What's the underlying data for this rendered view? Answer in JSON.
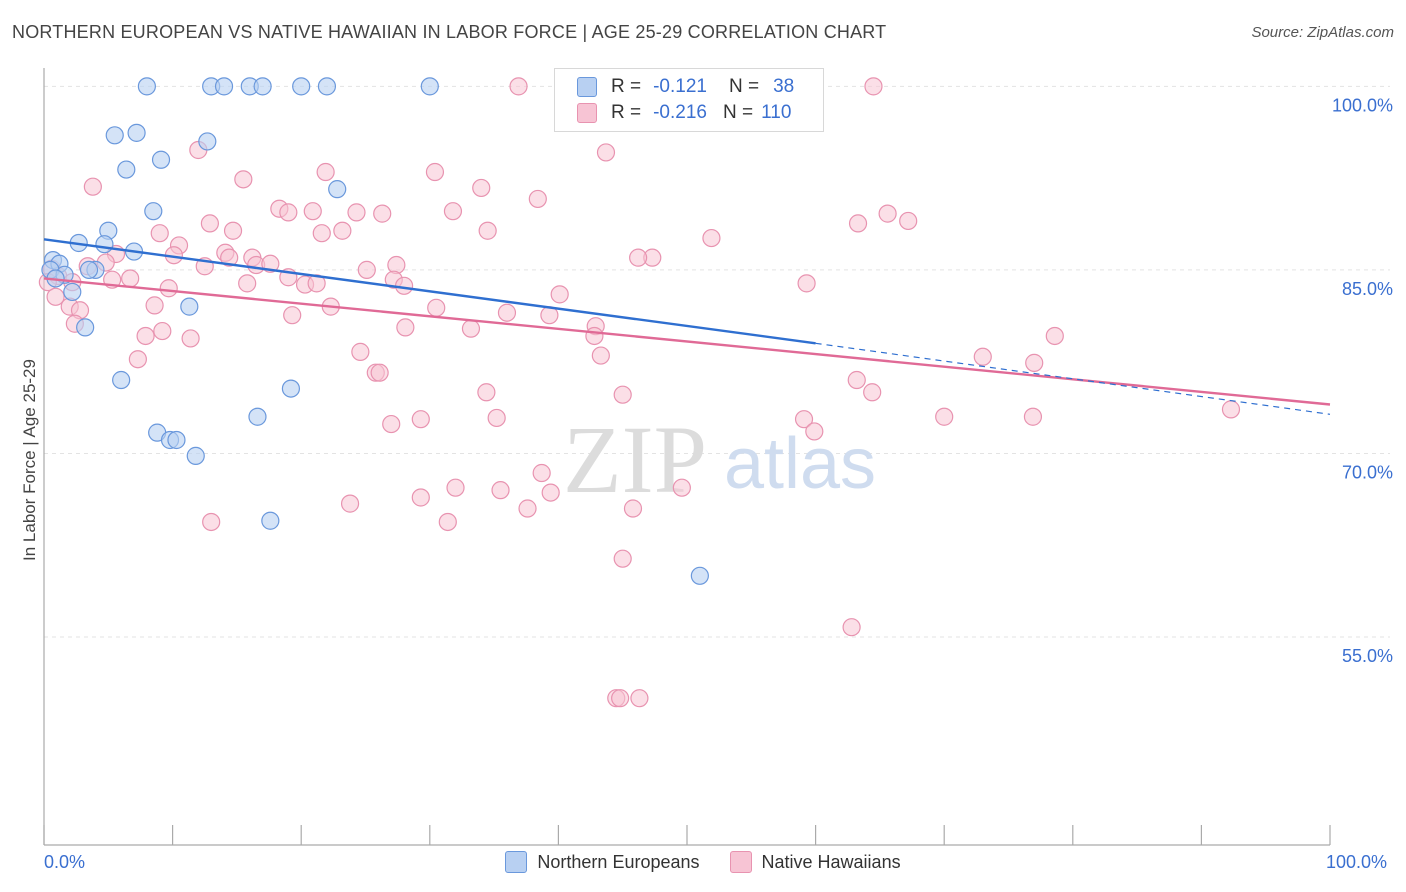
{
  "header": {
    "title": "NORTHERN EUROPEAN VS NATIVE HAWAIIAN IN LABOR FORCE | AGE 25-29 CORRELATION CHART",
    "source": "Source: ZipAtlas.com"
  },
  "watermark": {
    "zip": "ZIP",
    "atlas": "atlas"
  },
  "legend": {
    "rows": [
      {
        "r_label": "R =",
        "r_value": "-0.121",
        "n_label": "N =",
        "n_value": "38"
      },
      {
        "r_label": "R =",
        "r_value": "-0.216",
        "n_label": "N =",
        "n_value": "110"
      }
    ]
  },
  "colors": {
    "blue_fill": "#b8d0f2",
    "blue_stroke": "#6a98dc",
    "blue_line": "#2f6fd0",
    "pink_fill": "#f7c4d4",
    "pink_stroke": "#e893b0",
    "pink_line": "#e06a96",
    "tick_text": "#3a6fd0",
    "grid": "#e3e3e3"
  },
  "chart_data": {
    "type": "scatter",
    "title": "NORTHERN EUROPEAN VS NATIVE HAWAIIAN IN LABOR FORCE | AGE 25-29 CORRELATION CHART",
    "xlabel": "",
    "ylabel": "In Labor Force | Age 25-29",
    "xlim": [
      0,
      100
    ],
    "ylim": [
      38,
      101.5
    ],
    "x_tick_labels": [
      "0.0%",
      "100.0%"
    ],
    "y_ticks": [
      100,
      85,
      70,
      55
    ],
    "y_tick_labels": [
      "100.0%",
      "85.0%",
      "70.0%",
      "55.0%"
    ],
    "grid": true,
    "legend_position": "top-center",
    "series": [
      {
        "name": "Northern Europeans",
        "r": -0.121,
        "n": 38,
        "trend": {
          "x0": 0,
          "y0": 87.5,
          "x1": 60,
          "y1": 79.0,
          "dash_to_x": 100,
          "dash_to_y": 73.2
        },
        "points": [
          [
            8,
            100
          ],
          [
            13,
            100
          ],
          [
            14,
            100
          ],
          [
            16,
            100
          ],
          [
            17,
            100
          ],
          [
            20,
            100
          ],
          [
            22,
            100
          ],
          [
            30,
            100
          ],
          [
            5.5,
            96.0
          ],
          [
            7.2,
            96.2
          ],
          [
            12.7,
            95.5
          ],
          [
            6.4,
            93.2
          ],
          [
            9.1,
            94.0
          ],
          [
            22.8,
            91.6
          ],
          [
            8.5,
            89.8
          ],
          [
            5.0,
            88.2
          ],
          [
            2.7,
            87.2
          ],
          [
            4.7,
            87.1
          ],
          [
            7.0,
            86.5
          ],
          [
            0.7,
            85.8
          ],
          [
            1.2,
            85.5
          ],
          [
            0.5,
            85.0
          ],
          [
            1.6,
            84.6
          ],
          [
            4.0,
            85.0
          ],
          [
            3.5,
            85.0
          ],
          [
            0.9,
            84.3
          ],
          [
            2.2,
            83.2
          ],
          [
            11.3,
            82.0
          ],
          [
            3.2,
            80.3
          ],
          [
            6.0,
            76.0
          ],
          [
            19.2,
            75.3
          ],
          [
            16.6,
            73.0
          ],
          [
            8.8,
            71.7
          ],
          [
            9.8,
            71.1
          ],
          [
            10.3,
            71.1
          ],
          [
            11.8,
            69.8
          ],
          [
            17.6,
            64.5
          ],
          [
            51.0,
            60.0
          ]
        ]
      },
      {
        "name": "Native Hawaiians",
        "r": -0.216,
        "n": 110,
        "trend": {
          "x0": 0,
          "y0": 84.3,
          "x1": 100,
          "y1": 74.0
        },
        "points": [
          [
            36.9,
            100
          ],
          [
            54.1,
            100
          ],
          [
            64.5,
            100
          ],
          [
            53.2,
            97.8
          ],
          [
            12.0,
            94.8
          ],
          [
            43.7,
            94.6
          ],
          [
            3.8,
            91.8
          ],
          [
            15.5,
            92.4
          ],
          [
            21.9,
            93.0
          ],
          [
            30.4,
            93.0
          ],
          [
            34.0,
            91.7
          ],
          [
            38.4,
            90.8
          ],
          [
            18.3,
            90.0
          ],
          [
            19.0,
            89.7
          ],
          [
            20.9,
            89.8
          ],
          [
            24.3,
            89.7
          ],
          [
            26.3,
            89.6
          ],
          [
            31.8,
            89.8
          ],
          [
            65.6,
            89.6
          ],
          [
            63.3,
            88.8
          ],
          [
            67.2,
            89.0
          ],
          [
            12.9,
            88.8
          ],
          [
            14.7,
            88.2
          ],
          [
            21.6,
            88.0
          ],
          [
            23.2,
            88.2
          ],
          [
            34.5,
            88.2
          ],
          [
            9.0,
            88.0
          ],
          [
            10.5,
            87.0
          ],
          [
            51.9,
            87.6
          ],
          [
            5.6,
            86.3
          ],
          [
            10.1,
            86.2
          ],
          [
            14.1,
            86.4
          ],
          [
            14.4,
            86.0
          ],
          [
            16.2,
            86.0
          ],
          [
            16.5,
            85.4
          ],
          [
            17.6,
            85.5
          ],
          [
            27.4,
            85.4
          ],
          [
            4.8,
            85.6
          ],
          [
            3.4,
            85.3
          ],
          [
            47.3,
            86.0
          ],
          [
            46.2,
            86.0
          ],
          [
            12.5,
            85.3
          ],
          [
            25.1,
            85.0
          ],
          [
            0.6,
            85.1
          ],
          [
            1.1,
            84.5
          ],
          [
            0.3,
            84.0
          ],
          [
            2.2,
            84.0
          ],
          [
            5.3,
            84.2
          ],
          [
            6.7,
            84.3
          ],
          [
            19.0,
            84.4
          ],
          [
            20.3,
            83.8
          ],
          [
            27.2,
            84.2
          ],
          [
            28.0,
            83.7
          ],
          [
            15.8,
            83.9
          ],
          [
            9.7,
            83.5
          ],
          [
            21.2,
            83.9
          ],
          [
            59.3,
            83.9
          ],
          [
            40.1,
            83.0
          ],
          [
            0.9,
            82.8
          ],
          [
            2.0,
            82.0
          ],
          [
            2.8,
            81.7
          ],
          [
            8.6,
            82.1
          ],
          [
            22.3,
            82.0
          ],
          [
            30.5,
            81.9
          ],
          [
            36.0,
            81.5
          ],
          [
            39.3,
            81.3
          ],
          [
            42.9,
            80.4
          ],
          [
            19.3,
            81.3
          ],
          [
            2.4,
            80.6
          ],
          [
            9.2,
            80.0
          ],
          [
            7.9,
            79.6
          ],
          [
            11.4,
            79.4
          ],
          [
            28.1,
            80.3
          ],
          [
            33.2,
            80.2
          ],
          [
            42.8,
            79.6
          ],
          [
            78.6,
            79.6
          ],
          [
            7.3,
            77.7
          ],
          [
            24.6,
            78.3
          ],
          [
            25.8,
            76.6
          ],
          [
            26.1,
            76.6
          ],
          [
            43.3,
            78.0
          ],
          [
            73.0,
            77.9
          ],
          [
            77.0,
            77.4
          ],
          [
            63.2,
            76.0
          ],
          [
            64.4,
            75.0
          ],
          [
            34.4,
            75.0
          ],
          [
            45.0,
            74.8
          ],
          [
            92.3,
            73.6
          ],
          [
            27.0,
            72.4
          ],
          [
            29.3,
            72.8
          ],
          [
            35.2,
            72.9
          ],
          [
            59.1,
            72.8
          ],
          [
            59.9,
            71.8
          ],
          [
            70.0,
            73.0
          ],
          [
            76.9,
            73.0
          ],
          [
            38.7,
            68.4
          ],
          [
            49.6,
            67.2
          ],
          [
            32.0,
            67.2
          ],
          [
            35.5,
            67.0
          ],
          [
            29.3,
            66.4
          ],
          [
            39.4,
            66.8
          ],
          [
            23.8,
            65.9
          ],
          [
            45.8,
            65.5
          ],
          [
            37.6,
            65.5
          ],
          [
            31.4,
            64.4
          ],
          [
            13.0,
            64.4
          ],
          [
            45.0,
            61.4
          ],
          [
            62.8,
            55.8
          ],
          [
            44.5,
            50.0
          ],
          [
            44.8,
            50.0
          ],
          [
            46.3,
            50.0
          ]
        ]
      }
    ]
  },
  "bottom_legend": {
    "series1": "Northern Europeans",
    "series2": "Native Hawaiians"
  }
}
